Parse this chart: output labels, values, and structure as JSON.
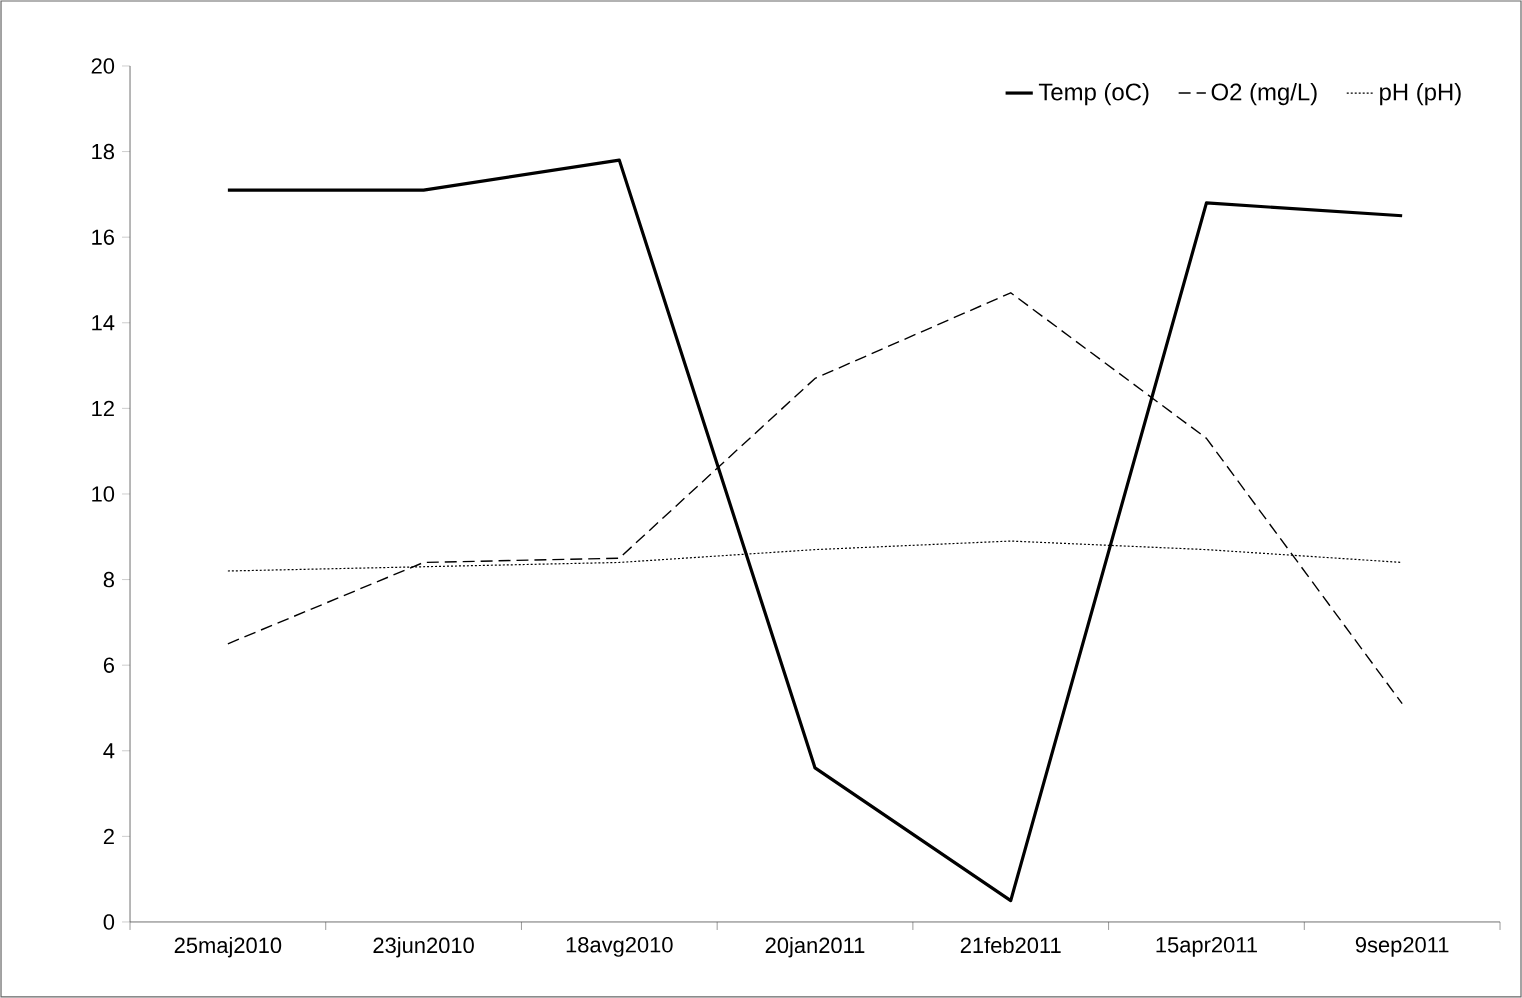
{
  "chart_data": {
    "type": "line",
    "categories": [
      "25maj2010",
      "23jun2010",
      "18avg2010",
      "20jan2011",
      "21feb2011",
      "15apr2011",
      "9sep2011"
    ],
    "series": [
      {
        "name": "Temp (oC)",
        "color": "#000000",
        "line_style": "solid",
        "values": [
          17.1,
          17.1,
          17.8,
          3.6,
          0.5,
          16.8,
          16.5
        ]
      },
      {
        "name": "O2 (mg/L)",
        "color": "#000000",
        "line_style": "dashed",
        "values": [
          6.5,
          8.4,
          8.5,
          12.7,
          14.7,
          11.3,
          5.1
        ]
      },
      {
        "name": "pH (pH)",
        "color": "#000000",
        "line_style": "dotted",
        "values": [
          8.2,
          8.3,
          8.4,
          8.7,
          8.9,
          8.7,
          8.4
        ]
      }
    ],
    "ylim": [
      0,
      20
    ],
    "yticks": [
      0,
      2,
      4,
      6,
      8,
      10,
      12,
      14,
      16,
      18,
      20
    ],
    "grid": false,
    "legend": "top right",
    "marker": "none"
  }
}
